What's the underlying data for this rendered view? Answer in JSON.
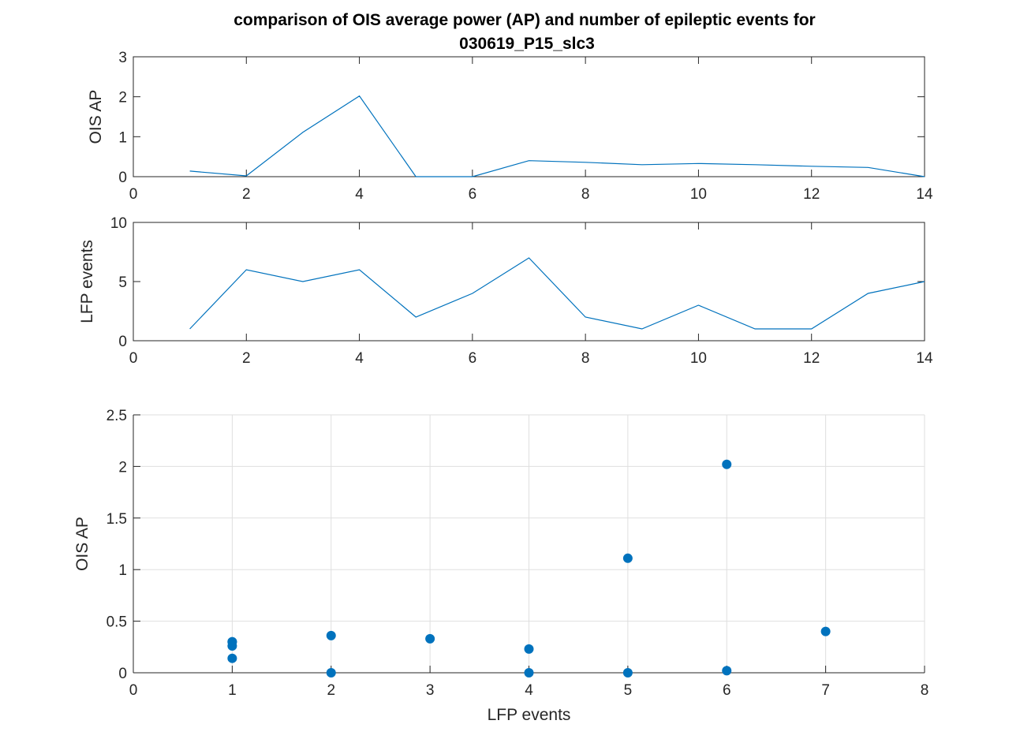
{
  "chart_data": [
    {
      "type": "line",
      "title_line1": "comparison of OIS average power (AP) and number of epileptic events for",
      "title_line2": "030619_P15_slc3",
      "xlabel": "",
      "ylabel": "OIS AP",
      "xlim": [
        0,
        14
      ],
      "ylim": [
        0,
        3
      ],
      "xticks": [
        0,
        2,
        4,
        6,
        8,
        10,
        12,
        14
      ],
      "yticks": [
        0,
        1,
        2,
        3
      ],
      "grid": false,
      "series": [
        {
          "x": [
            1,
            2,
            3,
            4,
            5,
            6,
            7,
            8,
            9,
            10,
            11,
            12,
            13,
            14
          ],
          "y": [
            0.14,
            0.02,
            1.11,
            2.02,
            0.0,
            0.0,
            0.4,
            0.36,
            0.3,
            0.33,
            0.3,
            0.26,
            0.23,
            0.0
          ]
        }
      ],
      "color": "#0072BD"
    },
    {
      "type": "line",
      "xlabel": "",
      "ylabel": "LFP events",
      "xlim": [
        0,
        14
      ],
      "ylim": [
        0,
        10
      ],
      "xticks": [
        0,
        2,
        4,
        6,
        8,
        10,
        12,
        14
      ],
      "yticks": [
        0,
        5,
        10
      ],
      "grid": false,
      "series": [
        {
          "x": [
            1,
            2,
            3,
            4,
            5,
            6,
            7,
            8,
            9,
            10,
            11,
            12,
            13,
            14
          ],
          "y": [
            1,
            6,
            5,
            6,
            2,
            4,
            7,
            2,
            1,
            3,
            1,
            1,
            4,
            5
          ]
        }
      ],
      "color": "#0072BD"
    },
    {
      "type": "scatter",
      "xlabel": "LFP events",
      "ylabel": "OIS AP",
      "xlim": [
        0,
        8
      ],
      "ylim": [
        0,
        2.5
      ],
      "xticks": [
        0,
        1,
        2,
        3,
        4,
        5,
        6,
        7,
        8
      ],
      "yticks": [
        0,
        0.5,
        1,
        1.5,
        2,
        2.5
      ],
      "grid": true,
      "series": [
        {
          "x": [
            1,
            6,
            5,
            6,
            2,
            4,
            7,
            2,
            1,
            3,
            1,
            1,
            4,
            5
          ],
          "y": [
            0.14,
            0.02,
            1.11,
            2.02,
            0.0,
            0.0,
            0.4,
            0.36,
            0.3,
            0.33,
            0.3,
            0.26,
            0.23,
            0.0
          ]
        }
      ],
      "color": "#0072BD"
    }
  ]
}
